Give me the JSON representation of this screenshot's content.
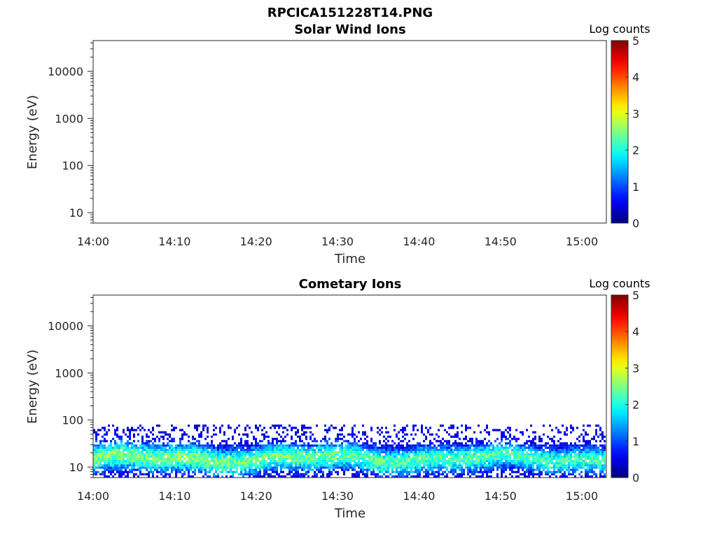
{
  "figure_title": "RPCICA151228T14.PNG",
  "chart_data": [
    {
      "type": "heatmap",
      "title": "Solar Wind Ions",
      "xlabel": "Time",
      "ylabel": "Energy (eV)",
      "x_ticks": [
        "14:00",
        "14:10",
        "14:20",
        "14:30",
        "14:40",
        "14:50",
        "15:00"
      ],
      "x_range": [
        "14:00",
        "15:03"
      ],
      "y_scale": "log",
      "y_ticks": [
        "10",
        "100",
        "1000",
        "10000"
      ],
      "y_range": [
        6,
        45000
      ],
      "colorbar": {
        "label": "Log counts",
        "ticks": [
          "0",
          "1",
          "2",
          "3",
          "4",
          "5"
        ],
        "range": [
          0,
          5
        ],
        "colormap": "jet"
      },
      "data_present": false
    },
    {
      "type": "heatmap",
      "title": "Cometary Ions",
      "xlabel": "Time",
      "ylabel": "Energy (eV)",
      "x_ticks": [
        "14:00",
        "14:10",
        "14:20",
        "14:30",
        "14:40",
        "14:50",
        "15:00"
      ],
      "x_range": [
        "14:00",
        "15:03"
      ],
      "y_scale": "log",
      "y_ticks": [
        "10",
        "100",
        "1000",
        "10000"
      ],
      "y_range": [
        6,
        45000
      ],
      "colorbar": {
        "label": "Log counts",
        "ticks": [
          "0",
          "1",
          "2",
          "3",
          "4",
          "5"
        ],
        "range": [
          0,
          5
        ],
        "colormap": "jet"
      },
      "data_present": true,
      "energy_band_eV": [
        6,
        80
      ],
      "peak_energy_eV": 15,
      "peak_log_counts": 2.5
    }
  ]
}
